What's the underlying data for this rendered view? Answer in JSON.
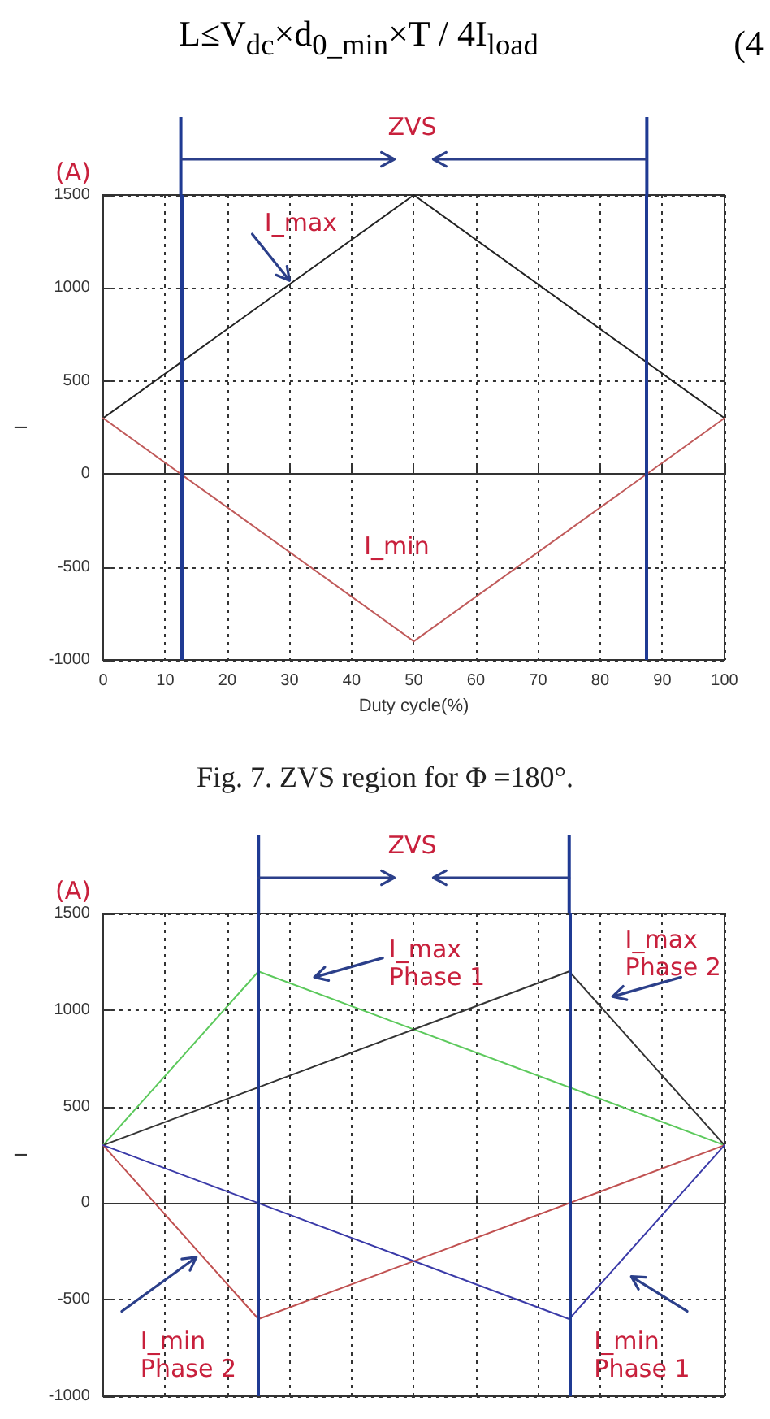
{
  "chart_data": [
    {
      "type": "other",
      "annotations": [
        "L≤V$_{dc}$×d$_{0_min}$×T / 4I$_{load}$",
        "(4"
      ]
    },
    {
      "type": "line",
      "title": "Fig. 7. ZVS region for Φ =180°.",
      "xlabel": "Duty cycle(%)",
      "ylabel": "I",
      "annotations": [
        "(A)",
        "ZVS"
      ],
      "xlim": [
        0,
        100
      ],
      "xticks": [
        0,
        10,
        20,
        30,
        40,
        50,
        60,
        70,
        80,
        90,
        100
      ],
      "ylim": [
        -1000,
        1500
      ],
      "yticks": [
        -1000,
        -500,
        0,
        500,
        1000,
        1500
      ],
      "grid": true,
      "series": [
        {
          "name": "I_max",
          "color": "#222222",
          "x": [
            0,
            50,
            100
          ],
          "values": [
            300,
            1500,
            300
          ]
        },
        {
          "name": "I_min",
          "color": "#c05a5a",
          "x": [
            0,
            50,
            100
          ],
          "values": [
            300,
            -900,
            300
          ]
        }
      ],
      "ref_lines": [
        {
          "axis": "x",
          "value": 12.5,
          "color": "#1f3a93"
        },
        {
          "axis": "x",
          "value": 87.5,
          "color": "#1f3a93"
        }
      ]
    },
    {
      "type": "line",
      "ylabel": "I",
      "annotations": [
        "(A)",
        "ZVS"
      ],
      "tick_labels": "y",
      "xlim": [
        0,
        100
      ],
      "xticks": [
        0,
        10,
        20,
        30,
        40,
        50,
        60,
        70,
        80,
        90,
        100
      ],
      "ylim": [
        -1000,
        1500
      ],
      "yticks": [
        -1000,
        -500,
        0,
        500,
        1000,
        1500
      ],
      "grid": true,
      "series": [
        {
          "name": "I_max Phase 1",
          "color": "#5cc95c",
          "x": [
            0,
            25,
            100
          ],
          "values": [
            300,
            1200,
            300
          ]
        },
        {
          "name": "I_max Phase 2",
          "color": "#333333",
          "x": [
            0,
            75,
            100
          ],
          "values": [
            300,
            1200,
            300
          ]
        },
        {
          "name": "I_min Phase 2",
          "color": "#c05050",
          "x": [
            0,
            25,
            100
          ],
          "values": [
            300,
            -600,
            300
          ]
        },
        {
          "name": "I_min Phase 1",
          "color": "#3a3aa8",
          "x": [
            0,
            75,
            100
          ],
          "values": [
            300,
            -600,
            300
          ]
        }
      ],
      "ref_lines": [
        {
          "axis": "x",
          "value": 25,
          "color": "#1f3a93"
        },
        {
          "axis": "x",
          "value": 75,
          "color": "#1f3a93"
        }
      ]
    }
  ]
}
